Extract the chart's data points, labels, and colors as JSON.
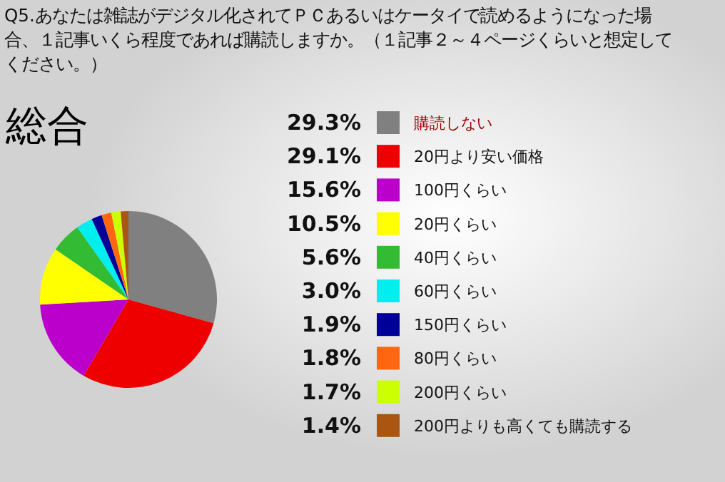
{
  "chart_data": {
    "type": "pie",
    "title": "Q5.あなたは雑誌がデジタル化されてＰＣあるいはケータイで読めるようになった場合、１記事いくら程度であれば購読しますか。（１記事２～４ページくらいと想定してください。）",
    "subtitle": "総合",
    "categories": [
      "購読しない",
      "20円より安い価格",
      "100円くらい",
      "20円くらい",
      "40円くらい",
      "60円くらい",
      "150円くらい",
      "80円くらい",
      "200円くらい",
      "200円よりも高くても購読する"
    ],
    "values": [
      29.3,
      29.1,
      15.6,
      10.5,
      5.6,
      3.0,
      1.9,
      1.8,
      1.7,
      1.4
    ],
    "value_labels": [
      "29.3%",
      "29.1%",
      "15.6%",
      "10.5%",
      "5.6%",
      "3.0%",
      "1.9%",
      "1.8%",
      "1.7%",
      "1.4%"
    ],
    "colors": [
      "#808080",
      "#ee0000",
      "#bb00cc",
      "#ffff00",
      "#33bb33",
      "#00eeee",
      "#000099",
      "#ff6611",
      "#ccff00",
      "#aa5511"
    ],
    "legend": "right"
  }
}
